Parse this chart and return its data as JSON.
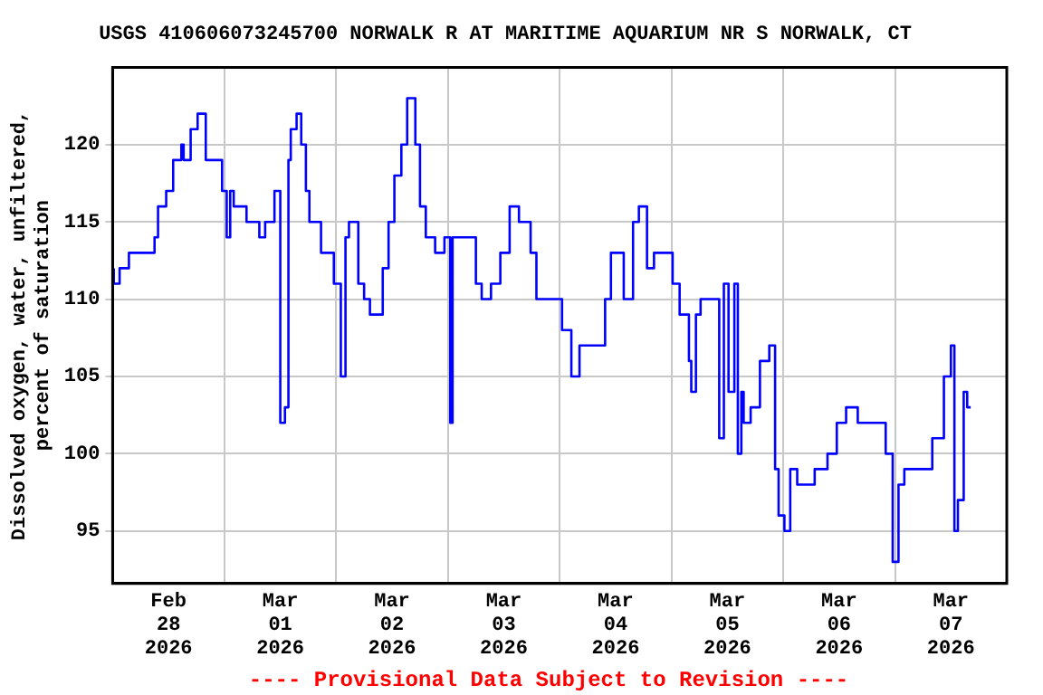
{
  "chart_data": {
    "type": "step",
    "title": "USGS 410606073245700 NORWALK R AT MARITIME AQUARIUM NR S NORWALK, CT",
    "ylabel": "Dissolved oxygen, water, unfiltered,\npercent of saturation",
    "annotations": [
      "---- Provisional Data Subject to Revision ----"
    ],
    "x": [
      "2026-02-28T00:15",
      "2026-02-28T01:30",
      "2026-02-28T03:30",
      "2026-02-28T05:00",
      "2026-02-28T09:00",
      "2026-02-28T09:45",
      "2026-02-28T11:30",
      "2026-02-28T13:00",
      "2026-02-28T14:45",
      "2026-02-28T15:15",
      "2026-02-28T16:45",
      "2026-02-28T18:15",
      "2026-02-28T20:00",
      "2026-02-28T21:30",
      "2026-02-28T23:30",
      "2026-03-01T00:30",
      "2026-03-01T01:15",
      "2026-03-01T02:00",
      "2026-03-01T04:45",
      "2026-03-01T07:30",
      "2026-03-01T08:45",
      "2026-03-01T10:45",
      "2026-03-01T12:00",
      "2026-03-01T13:00",
      "2026-03-01T13:45",
      "2026-03-01T14:15",
      "2026-03-01T15:30",
      "2026-03-01T16:30",
      "2026-03-01T17:30",
      "2026-03-01T18:15",
      "2026-03-01T20:45",
      "2026-03-01T23:30",
      "2026-03-02T01:00",
      "2026-03-02T02:00",
      "2026-03-02T02:45",
      "2026-03-02T04:45",
      "2026-03-02T06:00",
      "2026-03-02T07:15",
      "2026-03-02T08:30",
      "2026-03-02T10:00",
      "2026-03-02T11:15",
      "2026-03-02T12:30",
      "2026-03-02T14:00",
      "2026-03-02T15:15",
      "2026-03-02T17:00",
      "2026-03-02T18:00",
      "2026-03-02T19:15",
      "2026-03-02T21:15",
      "2026-03-02T23:15",
      "2026-03-03T00:30",
      "2026-03-03T01:00",
      "2026-03-03T02:00",
      "2026-03-03T03:15",
      "2026-03-03T06:00",
      "2026-03-03T07:15",
      "2026-03-03T09:15",
      "2026-03-03T11:15",
      "2026-03-03T13:15",
      "2026-03-03T15:15",
      "2026-03-03T17:45",
      "2026-03-03T19:00",
      "2026-03-03T20:30",
      "2026-03-04T00:30",
      "2026-03-04T02:30",
      "2026-03-04T04:15",
      "2026-03-04T05:45",
      "2026-03-04T09:45",
      "2026-03-04T11:00",
      "2026-03-04T13:45",
      "2026-03-04T15:45",
      "2026-03-04T17:00",
      "2026-03-04T18:45",
      "2026-03-04T20:15",
      "2026-03-04T22:15",
      "2026-03-05T00:15",
      "2026-03-05T01:45",
      "2026-03-05T03:45",
      "2026-03-05T04:15",
      "2026-03-05T05:15",
      "2026-03-05T06:15",
      "2026-03-05T08:15",
      "2026-03-05T10:15",
      "2026-03-05T11:15",
      "2026-03-05T12:15",
      "2026-03-05T13:30",
      "2026-03-05T14:15",
      "2026-03-05T15:00",
      "2026-03-05T15:30",
      "2026-03-05T17:00",
      "2026-03-05T19:00",
      "2026-03-05T21:00",
      "2026-03-05T22:15",
      "2026-03-05T23:00",
      "2026-03-06T00:15",
      "2026-03-06T01:30",
      "2026-03-06T03:00",
      "2026-03-06T06:45",
      "2026-03-06T09:30",
      "2026-03-06T11:30",
      "2026-03-06T13:30",
      "2026-03-06T16:00",
      "2026-03-06T18:45",
      "2026-03-06T22:00",
      "2026-03-06T23:30",
      "2026-03-07T00:45",
      "2026-03-07T02:00",
      "2026-03-07T03:30",
      "2026-03-07T08:00",
      "2026-03-07T10:30",
      "2026-03-07T12:00",
      "2026-03-07T12:45",
      "2026-03-07T13:30",
      "2026-03-07T14:45",
      "2026-03-07T15:30",
      "2026-03-07T16:15"
    ],
    "series": [
      {
        "color": "#0000ff",
        "values": [
          112,
          111,
          112,
          113,
          113,
          114,
          116,
          117,
          119,
          120,
          119,
          121,
          122,
          119,
          119,
          117,
          114,
          117,
          116,
          115,
          114,
          115,
          117,
          102,
          103,
          119,
          121,
          122,
          120,
          117,
          115,
          113,
          111,
          105,
          114,
          115,
          111,
          110,
          109,
          109,
          112,
          115,
          118,
          120,
          123,
          120,
          116,
          114,
          113,
          114,
          102,
          114,
          114,
          114,
          111,
          110,
          111,
          113,
          116,
          115,
          113,
          110,
          110,
          108,
          105,
          107,
          107,
          110,
          113,
          110,
          115,
          116,
          112,
          113,
          113,
          111,
          109,
          106,
          104,
          109,
          110,
          110,
          101,
          111,
          104,
          111,
          100,
          104,
          102,
          103,
          106,
          107,
          99,
          96,
          95,
          99,
          98,
          99,
          100,
          102,
          103,
          102,
          102,
          100,
          93,
          98,
          99,
          99,
          101,
          105,
          107,
          95,
          97,
          104,
          103
        ]
      }
    ],
    "xlim": [
      "2026-02-28T00:00",
      "2026-03-08T00:00"
    ],
    "xticks": [
      {
        "value": "2026-02-28T12:00",
        "label": "Feb\n28\n2026"
      },
      {
        "value": "2026-03-01T00:00",
        "label": null
      },
      {
        "value": "2026-03-01T12:00",
        "label": "Mar\n01\n2026"
      },
      {
        "value": "2026-03-02T00:00",
        "label": null
      },
      {
        "value": "2026-03-02T12:00",
        "label": "Mar\n02\n2026"
      },
      {
        "value": "2026-03-03T00:00",
        "label": null
      },
      {
        "value": "2026-03-03T12:00",
        "label": "Mar\n03\n2026"
      },
      {
        "value": "2026-03-04T00:00",
        "label": null
      },
      {
        "value": "2026-03-04T12:00",
        "label": "Mar\n04\n2026"
      },
      {
        "value": "2026-03-05T00:00",
        "label": null
      },
      {
        "value": "2026-03-05T12:00",
        "label": "Mar\n05\n2026"
      },
      {
        "value": "2026-03-06T00:00",
        "label": null
      },
      {
        "value": "2026-03-06T12:00",
        "label": "Mar\n06\n2026"
      },
      {
        "value": "2026-03-07T00:00",
        "label": null
      },
      {
        "value": "2026-03-07T12:00",
        "label": "Mar\n07\n2026"
      }
    ],
    "ylim": [
      91.6,
      125
    ],
    "yticks": [
      95,
      100,
      105,
      110,
      115,
      120
    ],
    "grid": true
  }
}
